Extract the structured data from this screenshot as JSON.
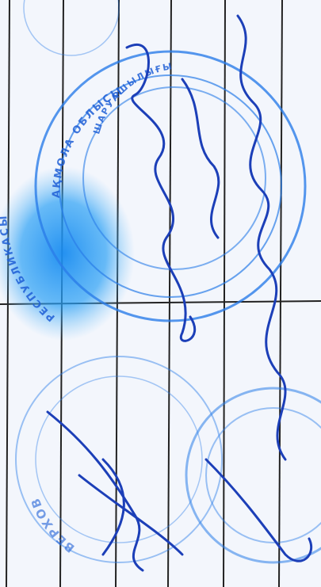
{
  "stamps": [
    {
      "text": "АҚМОЛА ОБЛЫСЫ"
    },
    {
      "text": "ШАРУАШЫЛЫҒЫ"
    },
    {
      "text": "РЕСПУБЛИКАСЫ"
    },
    {
      "text": "ВЕРХОВ"
    }
  ]
}
